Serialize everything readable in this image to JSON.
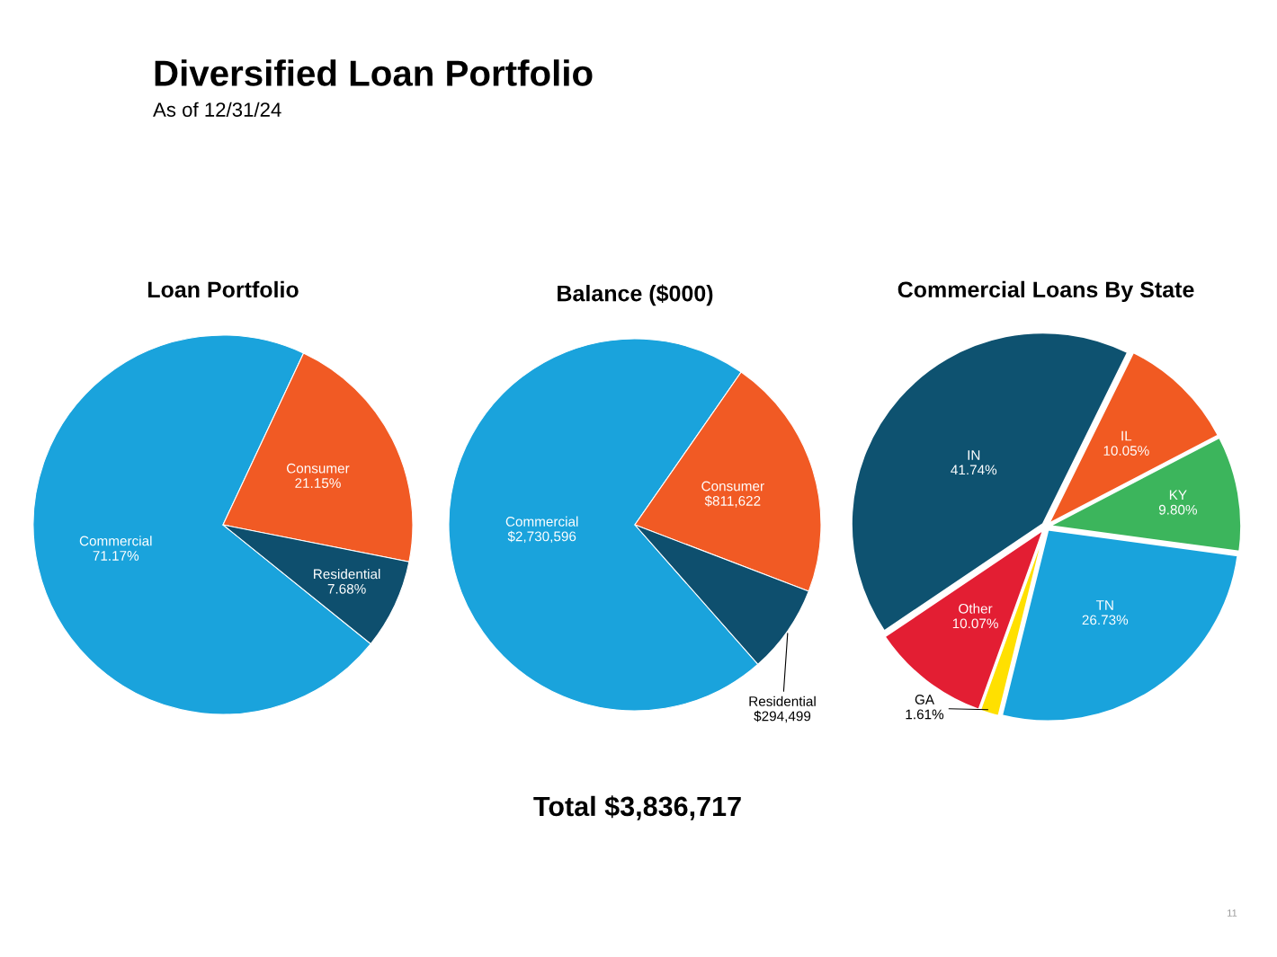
{
  "chart_data": [
    {
      "type": "pie",
      "title": "Loan Portfolio",
      "categories": [
        "Commercial",
        "Consumer",
        "Residential"
      ],
      "values": [
        71.17,
        21.15,
        7.68
      ],
      "colors": [
        "#1aa3dc",
        "#f15a24",
        "#0e4f6e"
      ],
      "value_labels": [
        "71.17%",
        "21.15%",
        "7.68%"
      ],
      "annotations": [
        "Diversified Loan Portfolio",
        "As of 12/31/24"
      ]
    },
    {
      "type": "pie",
      "title": "Balance ($000)",
      "categories": [
        "Commercial",
        "Consumer",
        "Residential"
      ],
      "values": [
        2730596,
        811622,
        294499
      ],
      "colors": [
        "#1aa3dc",
        "#f15a24",
        "#0e4f6e"
      ],
      "value_labels": [
        "$2,730,596",
        "$811,622",
        "$294,499"
      ],
      "annotations": [
        "Total $3,836,717"
      ]
    },
    {
      "type": "pie",
      "title": "Commercial Loans By State",
      "categories": [
        "IN",
        "IL",
        "KY",
        "TN",
        "GA",
        "Other"
      ],
      "values": [
        41.74,
        10.05,
        9.8,
        26.73,
        1.61,
        10.07
      ],
      "colors": [
        "#0e5270",
        "#f15a22",
        "#3cb55c",
        "#19a3dc",
        "#ffe000",
        "#e31e33"
      ],
      "value_labels": [
        "41.74%",
        "10.05%",
        "9.80%",
        "26.73%",
        "1.61%",
        "10.07%"
      ],
      "annotations": [
        "11"
      ]
    }
  ]
}
